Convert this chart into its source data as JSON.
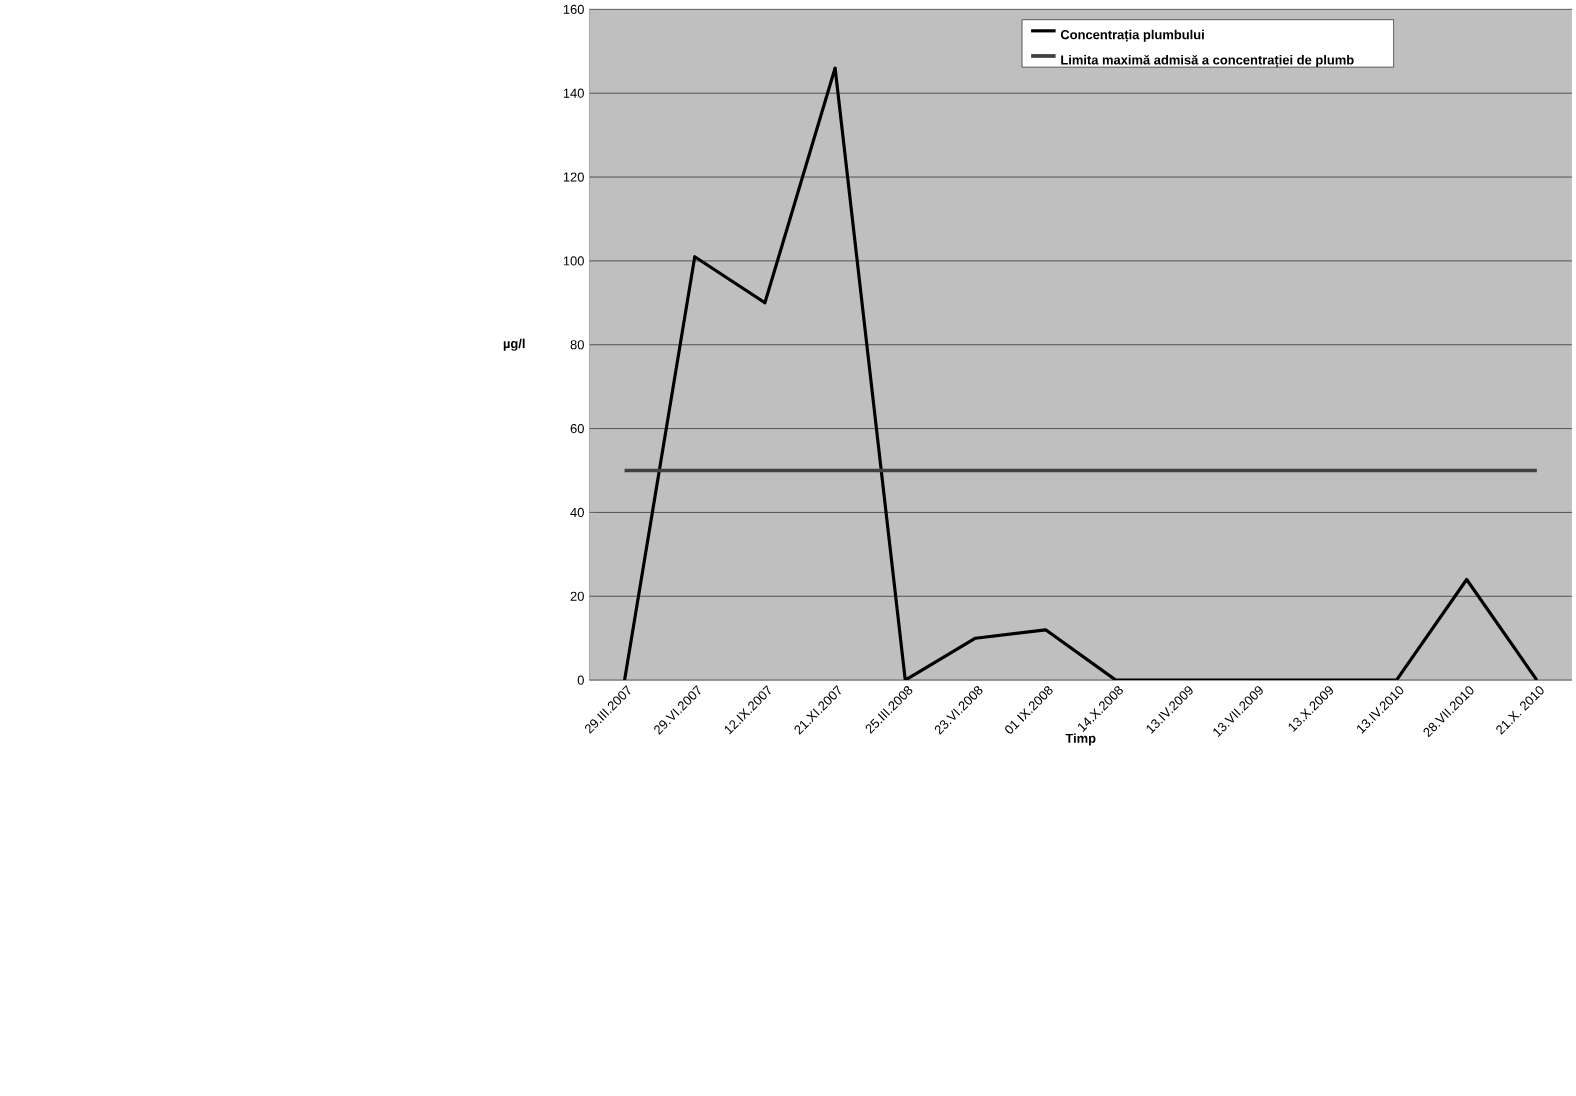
{
  "chart_data": {
    "type": "line",
    "xlabel": "Timp",
    "ylabel": "µg/l",
    "categories": [
      "29.III.2007",
      "29.VI.2007",
      "12.IX.2007",
      "21.XI.2007",
      "25.III.2008",
      "23.VI.2008",
      "01 IX.2008",
      "14.X.2008",
      "13.IV.2009",
      "13.VII.2009",
      "13.X.2009",
      "13.IV.2010",
      "28.VII.2010",
      "21.X. 2010"
    ],
    "series": [
      {
        "name": "Concentrația plumbului",
        "color": "#000000",
        "values": [
          0,
          101,
          90,
          146,
          0,
          10,
          12,
          0,
          0,
          0,
          0,
          0,
          24,
          0
        ]
      },
      {
        "name": "Limita maximă admisă a concentrației de plumb",
        "color": "#404040",
        "values": [
          50,
          50,
          50,
          50,
          50,
          50,
          50,
          50,
          50,
          50,
          50,
          50,
          50,
          50
        ]
      }
    ],
    "ylim": [
      0,
      160
    ],
    "yticks": [
      0,
      20,
      40,
      60,
      80,
      100,
      120,
      140,
      160
    ],
    "grid": "y",
    "legend": "top right"
  }
}
